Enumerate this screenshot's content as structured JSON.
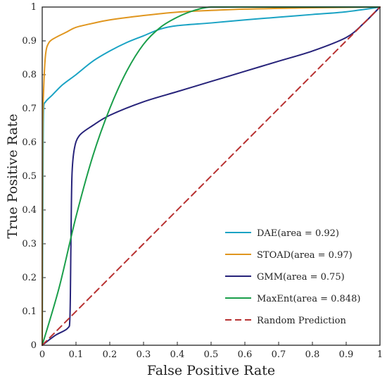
{
  "chart_data": {
    "type": "line",
    "title": "",
    "xlabel": "False Positive Rate",
    "ylabel": "True Positive Rate",
    "xlim": [
      0,
      1
    ],
    "ylim": [
      0,
      1
    ],
    "xticks": [
      "0",
      "0.1",
      "0.2",
      "0.3",
      "0.4",
      "0.5",
      "0.6",
      "0.7",
      "0.8",
      "0.9",
      "1"
    ],
    "yticks": [
      "0",
      "0.1",
      "0.2",
      "0.3",
      "0.4",
      "0.5",
      "0.6",
      "0.7",
      "0.8",
      "0.9",
      "1"
    ],
    "grid": false,
    "legend_position": "bottom-right",
    "series": [
      {
        "name": "DAE(area = 0.92)",
        "color": "#1aa3c4",
        "dash": "solid",
        "points": [
          [
            0,
            0
          ],
          [
            0.002,
            0.45
          ],
          [
            0.004,
            0.7
          ],
          [
            0.01,
            0.72
          ],
          [
            0.03,
            0.74
          ],
          [
            0.06,
            0.77
          ],
          [
            0.1,
            0.8
          ],
          [
            0.15,
            0.84
          ],
          [
            0.2,
            0.87
          ],
          [
            0.25,
            0.895
          ],
          [
            0.3,
            0.915
          ],
          [
            0.35,
            0.935
          ],
          [
            0.4,
            0.945
          ],
          [
            0.5,
            0.953
          ],
          [
            0.6,
            0.962
          ],
          [
            0.7,
            0.97
          ],
          [
            0.8,
            0.978
          ],
          [
            0.9,
            0.986
          ],
          [
            1,
            1
          ]
        ]
      },
      {
        "name": "STOAD(area = 0.97)",
        "color": "#e0961f",
        "dash": "solid",
        "points": [
          [
            0,
            0
          ],
          [
            0.001,
            0.6
          ],
          [
            0.004,
            0.75
          ],
          [
            0.01,
            0.86
          ],
          [
            0.02,
            0.895
          ],
          [
            0.04,
            0.91
          ],
          [
            0.07,
            0.925
          ],
          [
            0.1,
            0.94
          ],
          [
            0.15,
            0.952
          ],
          [
            0.2,
            0.962
          ],
          [
            0.3,
            0.975
          ],
          [
            0.4,
            0.985
          ],
          [
            0.5,
            0.99
          ],
          [
            0.6,
            0.994
          ],
          [
            0.7,
            0.996
          ],
          [
            0.8,
            0.998
          ],
          [
            1,
            1
          ]
        ]
      },
      {
        "name": "GMM(area = 0.75)",
        "color": "#27237a",
        "dash": "solid",
        "points": [
          [
            0,
            0
          ],
          [
            0.04,
            0.03
          ],
          [
            0.075,
            0.05
          ],
          [
            0.082,
            0.08
          ],
          [
            0.085,
            0.3
          ],
          [
            0.088,
            0.5
          ],
          [
            0.095,
            0.58
          ],
          [
            0.11,
            0.62
          ],
          [
            0.15,
            0.65
          ],
          [
            0.2,
            0.68
          ],
          [
            0.3,
            0.72
          ],
          [
            0.4,
            0.75
          ],
          [
            0.5,
            0.78
          ],
          [
            0.6,
            0.81
          ],
          [
            0.7,
            0.84
          ],
          [
            0.8,
            0.87
          ],
          [
            0.9,
            0.91
          ],
          [
            0.95,
            0.95
          ],
          [
            1,
            1
          ]
        ]
      },
      {
        "name": "MaxEnt(area = 0.848)",
        "color": "#1a9e4a",
        "dash": "solid",
        "points": [
          [
            0,
            0
          ],
          [
            0.05,
            0.17
          ],
          [
            0.1,
            0.38
          ],
          [
            0.15,
            0.56
          ],
          [
            0.2,
            0.7
          ],
          [
            0.25,
            0.81
          ],
          [
            0.3,
            0.89
          ],
          [
            0.35,
            0.94
          ],
          [
            0.4,
            0.97
          ],
          [
            0.45,
            0.99
          ],
          [
            0.5,
            1
          ],
          [
            0.6,
            1
          ],
          [
            0.8,
            1
          ],
          [
            1,
            1
          ]
        ]
      },
      {
        "name": "Random Prediction",
        "color": "#b83232",
        "dash": "dashed",
        "points": [
          [
            0,
            0
          ],
          [
            1,
            1
          ]
        ]
      }
    ]
  }
}
